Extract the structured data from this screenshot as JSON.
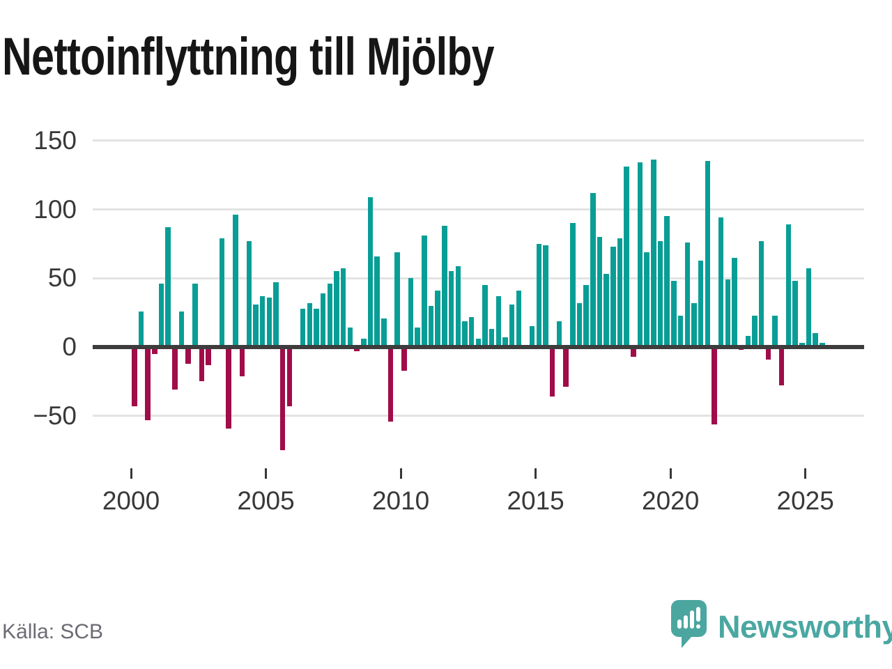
{
  "title": "Nettoinflyttning till Mjölby",
  "source": "Källa: SCB",
  "brand": {
    "wordmark": "Newsworthy",
    "icon": "speech-bubble-bar-chart-icon"
  },
  "colors": {
    "positive_bar": "#089e96",
    "negative_bar": "#a00d48",
    "gridline": "#e3e3e3",
    "zero_line": "#3d3d3d",
    "axis_text": "#383838",
    "title_text": "#161616",
    "source_text": "#6b6b74",
    "brand_teal": "#4aa7a1"
  },
  "chart_data": {
    "type": "bar",
    "title": "Nettoinflyttning till Mjölby",
    "x_unit": "quarter",
    "xlabel": "",
    "ylabel": "",
    "ylim": [
      -80,
      155
    ],
    "grid": "horizontal",
    "baseline": 0,
    "yticks": [
      {
        "label": "150",
        "value": 150
      },
      {
        "label": "100",
        "value": 100
      },
      {
        "label": "50",
        "value": 50
      },
      {
        "label": "0",
        "value": 0
      },
      {
        "label": "−50",
        "value": -50
      }
    ],
    "xticks": [
      2000,
      2005,
      2010,
      2015,
      2020,
      2025
    ],
    "series": [
      {
        "year": 2000,
        "values": [
          -43,
          26,
          -53,
          -5
        ]
      },
      {
        "year": 2001,
        "values": [
          46,
          87,
          -31,
          26
        ]
      },
      {
        "year": 2002,
        "values": [
          -12,
          46,
          -25,
          -13
        ]
      },
      {
        "year": 2003,
        "values": [
          0,
          79,
          -59,
          96
        ]
      },
      {
        "year": 2004,
        "values": [
          -21,
          77,
          31,
          37
        ]
      },
      {
        "year": 2005,
        "values": [
          36,
          47,
          -75,
          -43
        ]
      },
      {
        "year": 2006,
        "values": [
          0,
          28,
          32,
          28
        ]
      },
      {
        "year": 2007,
        "values": [
          39,
          46,
          55,
          57
        ]
      },
      {
        "year": 2008,
        "values": [
          14,
          -3,
          6,
          109
        ]
      },
      {
        "year": 2009,
        "values": [
          66,
          21,
          -54,
          69
        ]
      },
      {
        "year": 2010,
        "values": [
          -17,
          50,
          14,
          81
        ]
      },
      {
        "year": 2011,
        "values": [
          30,
          41,
          88,
          55
        ]
      },
      {
        "year": 2012,
        "values": [
          59,
          19,
          22,
          6
        ]
      },
      {
        "year": 2013,
        "values": [
          45,
          13,
          37,
          7
        ]
      },
      {
        "year": 2014,
        "values": [
          31,
          41,
          0,
          15
        ]
      },
      {
        "year": 2015,
        "values": [
          75,
          74,
          -36,
          19
        ]
      },
      {
        "year": 2016,
        "values": [
          -29,
          90,
          32,
          45
        ]
      },
      {
        "year": 2017,
        "values": [
          112,
          80,
          53,
          73
        ]
      },
      {
        "year": 2018,
        "values": [
          79,
          131,
          -7,
          134
        ]
      },
      {
        "year": 2019,
        "values": [
          69,
          136,
          77,
          95
        ]
      },
      {
        "year": 2020,
        "values": [
          48,
          23,
          76,
          32
        ]
      },
      {
        "year": 2021,
        "values": [
          63,
          135,
          -56,
          94
        ]
      },
      {
        "year": 2022,
        "values": [
          49,
          65,
          -2,
          8
        ]
      },
      {
        "year": 2023,
        "values": [
          23,
          77,
          -9,
          23
        ]
      },
      {
        "year": 2024,
        "values": [
          -28,
          89,
          48,
          3
        ]
      },
      {
        "year": 2025,
        "values": [
          57,
          10,
          3
        ]
      }
    ]
  }
}
